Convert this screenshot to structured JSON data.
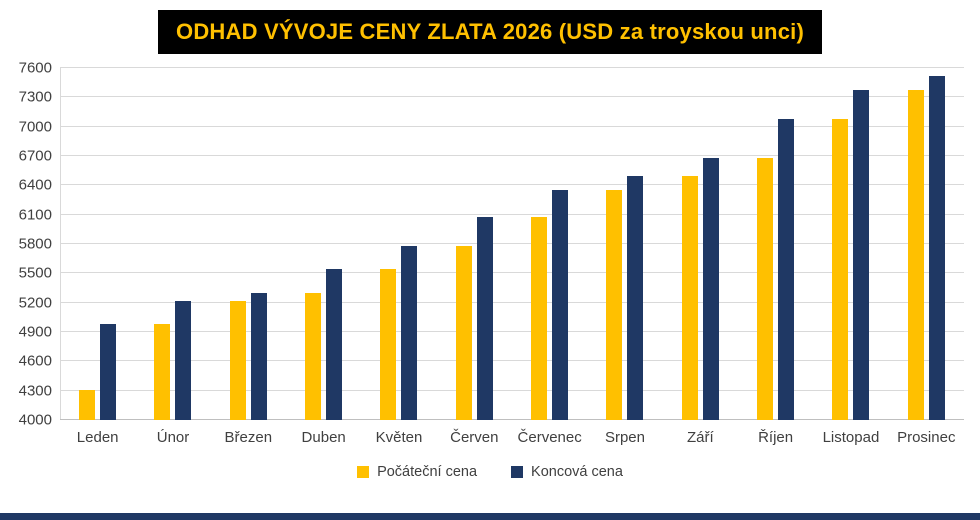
{
  "chart_data": {
    "type": "bar",
    "title": "ODHAD VÝVOJE CENY ZLATA 2026 (USD za troyskou unci)",
    "categories": [
      "Leden",
      "Únor",
      "Březen",
      "Duben",
      "Květen",
      "Červen",
      "Červenec",
      "Srpen",
      "Září",
      "Říjen",
      "Listopad",
      "Prosinec"
    ],
    "series": [
      {
        "name": "Počáteční cena",
        "color": "#FFC000",
        "values": [
          4310,
          4980,
          5220,
          5300,
          5540,
          5780,
          6080,
          6350,
          6500,
          6680,
          7080,
          7380
        ]
      },
      {
        "name": "Koncová cena",
        "color": "#1F3864",
        "values": [
          4980,
          5220,
          5300,
          5540,
          5780,
          6080,
          6350,
          6500,
          6680,
          7080,
          7380,
          7520
        ]
      }
    ],
    "ylim": [
      4000,
      7600
    ],
    "ytick_step": 300,
    "yticks": [
      4000,
      4300,
      4600,
      4900,
      5200,
      5500,
      5800,
      6100,
      6400,
      6700,
      7000,
      7300,
      7600
    ],
    "xlabel": "",
    "ylabel": "",
    "grid": true,
    "legend_position": "bottom"
  },
  "colors": {
    "title_bg": "#000000",
    "title_text": "#FFC000",
    "bottom_strip": "#1F3864",
    "gridline": "#D9D9D9",
    "axis_text": "#404040",
    "background": "#FFFFFF"
  }
}
